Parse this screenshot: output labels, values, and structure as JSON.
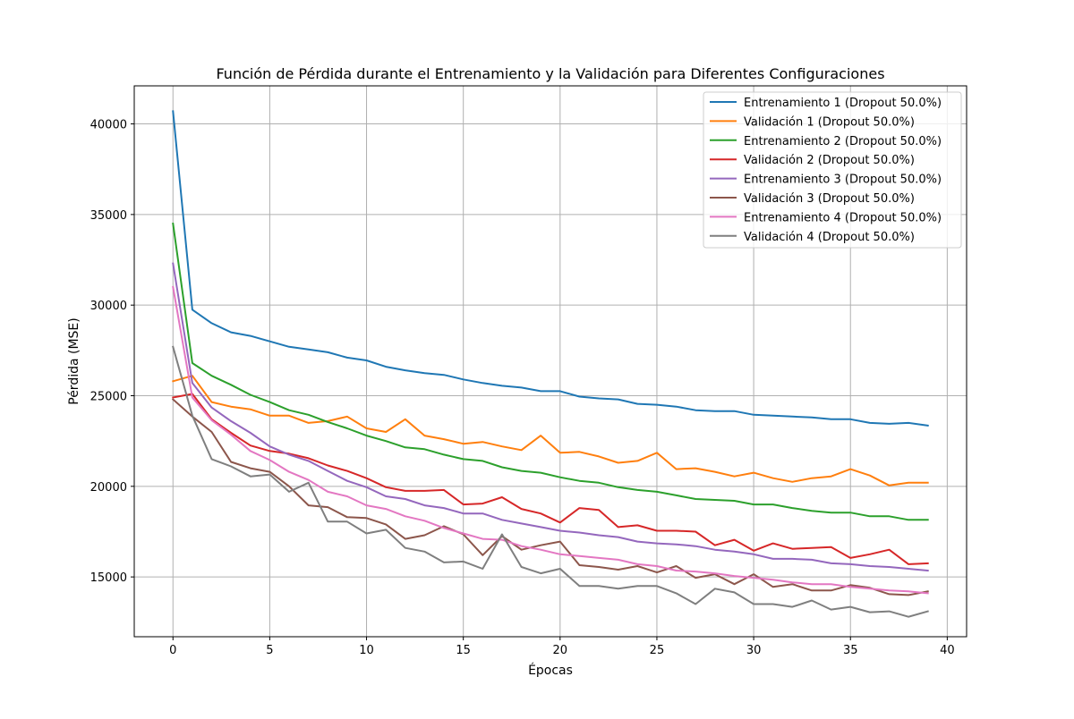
{
  "chart_data": {
    "type": "line",
    "title": "Función de Pérdida durante el Entrenamiento y la Validación para Diferentes Configuraciones",
    "xlabel": "Épocas",
    "ylabel": "Pérdida (MSE)",
    "xlim": [
      -2,
      41
    ],
    "ylim": [
      11700,
      42100
    ],
    "xticks": [
      0,
      5,
      10,
      15,
      20,
      25,
      30,
      35,
      40
    ],
    "yticks": [
      15000,
      20000,
      25000,
      30000,
      35000,
      40000
    ],
    "grid": true,
    "legend_position": "top-right",
    "x": [
      0,
      1,
      2,
      3,
      4,
      5,
      6,
      7,
      8,
      9,
      10,
      11,
      12,
      13,
      14,
      15,
      16,
      17,
      18,
      19,
      20,
      21,
      22,
      23,
      24,
      25,
      26,
      27,
      28,
      29,
      30,
      31,
      32,
      33,
      34,
      35,
      36,
      37,
      38,
      39
    ],
    "series": [
      {
        "name": "Entrenamiento 1 (Dropout 50.0%)",
        "color": "#1f77b4",
        "values": [
          40700,
          29750,
          29000,
          28500,
          28300,
          28000,
          27700,
          27550,
          27400,
          27100,
          26950,
          26600,
          26400,
          26250,
          26150,
          25900,
          25700,
          25550,
          25450,
          25250,
          25250,
          24950,
          24850,
          24800,
          24550,
          24500,
          24400,
          24200,
          24150,
          24150,
          23950,
          23900,
          23850,
          23800,
          23700,
          23700,
          23500,
          23450,
          23500,
          23350
        ]
      },
      {
        "name": "Validación 1 (Dropout 50.0%)",
        "color": "#ff7f0e",
        "values": [
          25800,
          26100,
          24650,
          24400,
          24250,
          23900,
          23900,
          23500,
          23600,
          23850,
          23200,
          23000,
          23700,
          22800,
          22600,
          22350,
          22450,
          22200,
          22000,
          22800,
          21850,
          21900,
          21650,
          21300,
          21400,
          21850,
          20950,
          21000,
          20800,
          20550,
          20750,
          20450,
          20250,
          20450,
          20550,
          20950,
          20600,
          20050,
          20200,
          20200
        ]
      },
      {
        "name": "Entrenamiento 2 (Dropout 50.0%)",
        "color": "#2ca02c",
        "values": [
          34500,
          26800,
          26100,
          25600,
          25050,
          24650,
          24200,
          23950,
          23550,
          23200,
          22800,
          22500,
          22150,
          22050,
          21750,
          21500,
          21400,
          21050,
          20850,
          20750,
          20500,
          20300,
          20200,
          19950,
          19800,
          19700,
          19500,
          19300,
          19250,
          19200,
          19000,
          19000,
          18800,
          18650,
          18550,
          18550,
          18350,
          18350,
          18150,
          18150
        ]
      },
      {
        "name": "Validación 2 (Dropout 50.0%)",
        "color": "#d62728",
        "values": [
          24900,
          25100,
          23700,
          22950,
          22250,
          21950,
          21800,
          21550,
          21150,
          20850,
          20450,
          19950,
          19750,
          19750,
          19800,
          19000,
          19050,
          19400,
          18750,
          18500,
          18000,
          18800,
          18700,
          17750,
          17850,
          17550,
          17550,
          17500,
          16750,
          17050,
          16450,
          16850,
          16550,
          16600,
          16650,
          16050,
          16250,
          16500,
          15700,
          15750
        ]
      },
      {
        "name": "Entrenamiento 3 (Dropout 50.0%)",
        "color": "#9467bd",
        "values": [
          32300,
          25700,
          24350,
          23600,
          22950,
          22200,
          21750,
          21400,
          20850,
          20300,
          19950,
          19450,
          19300,
          18950,
          18800,
          18500,
          18500,
          18150,
          17950,
          17750,
          17550,
          17450,
          17300,
          17200,
          16950,
          16850,
          16800,
          16700,
          16500,
          16400,
          16250,
          16000,
          16000,
          15950,
          15750,
          15700,
          15600,
          15550,
          15450,
          15350
        ]
      },
      {
        "name": "Validación 3 (Dropout 50.0%)",
        "color": "#8c564b",
        "values": [
          24800,
          23850,
          23000,
          21350,
          21000,
          20800,
          20000,
          18950,
          18850,
          18300,
          18250,
          17900,
          17100,
          17300,
          17800,
          17350,
          16200,
          17250,
          16500,
          16750,
          16950,
          15650,
          15550,
          15400,
          15600,
          15250,
          15600,
          14950,
          15150,
          14600,
          15150,
          14450,
          14600,
          14250,
          14250,
          14550,
          14400,
          14050,
          14000,
          14200
        ]
      },
      {
        "name": "Entrenamiento 4 (Dropout 50.0%)",
        "color": "#e377c2",
        "values": [
          31000,
          24900,
          23650,
          22850,
          21950,
          21450,
          20800,
          20350,
          19700,
          19450,
          18950,
          18750,
          18350,
          18100,
          17700,
          17400,
          17100,
          17050,
          16700,
          16500,
          16250,
          16150,
          16050,
          15950,
          15700,
          15600,
          15350,
          15300,
          15200,
          15050,
          14950,
          14850,
          14700,
          14600,
          14600,
          14450,
          14350,
          14250,
          14200,
          14100
        ]
      },
      {
        "name": "Validación 4 (Dropout 50.0%)",
        "color": "#7f7f7f",
        "values": [
          27700,
          23900,
          21500,
          21100,
          20550,
          20650,
          19700,
          20200,
          18050,
          18050,
          17400,
          17600,
          16600,
          16400,
          15800,
          15850,
          15450,
          17350,
          15550,
          15200,
          15450,
          14500,
          14500,
          14350,
          14500,
          14500,
          14100,
          13500,
          14350,
          14150,
          13500,
          13500,
          13350,
          13700,
          13200,
          13350,
          13050,
          13100,
          12800,
          13100
        ]
      }
    ]
  }
}
